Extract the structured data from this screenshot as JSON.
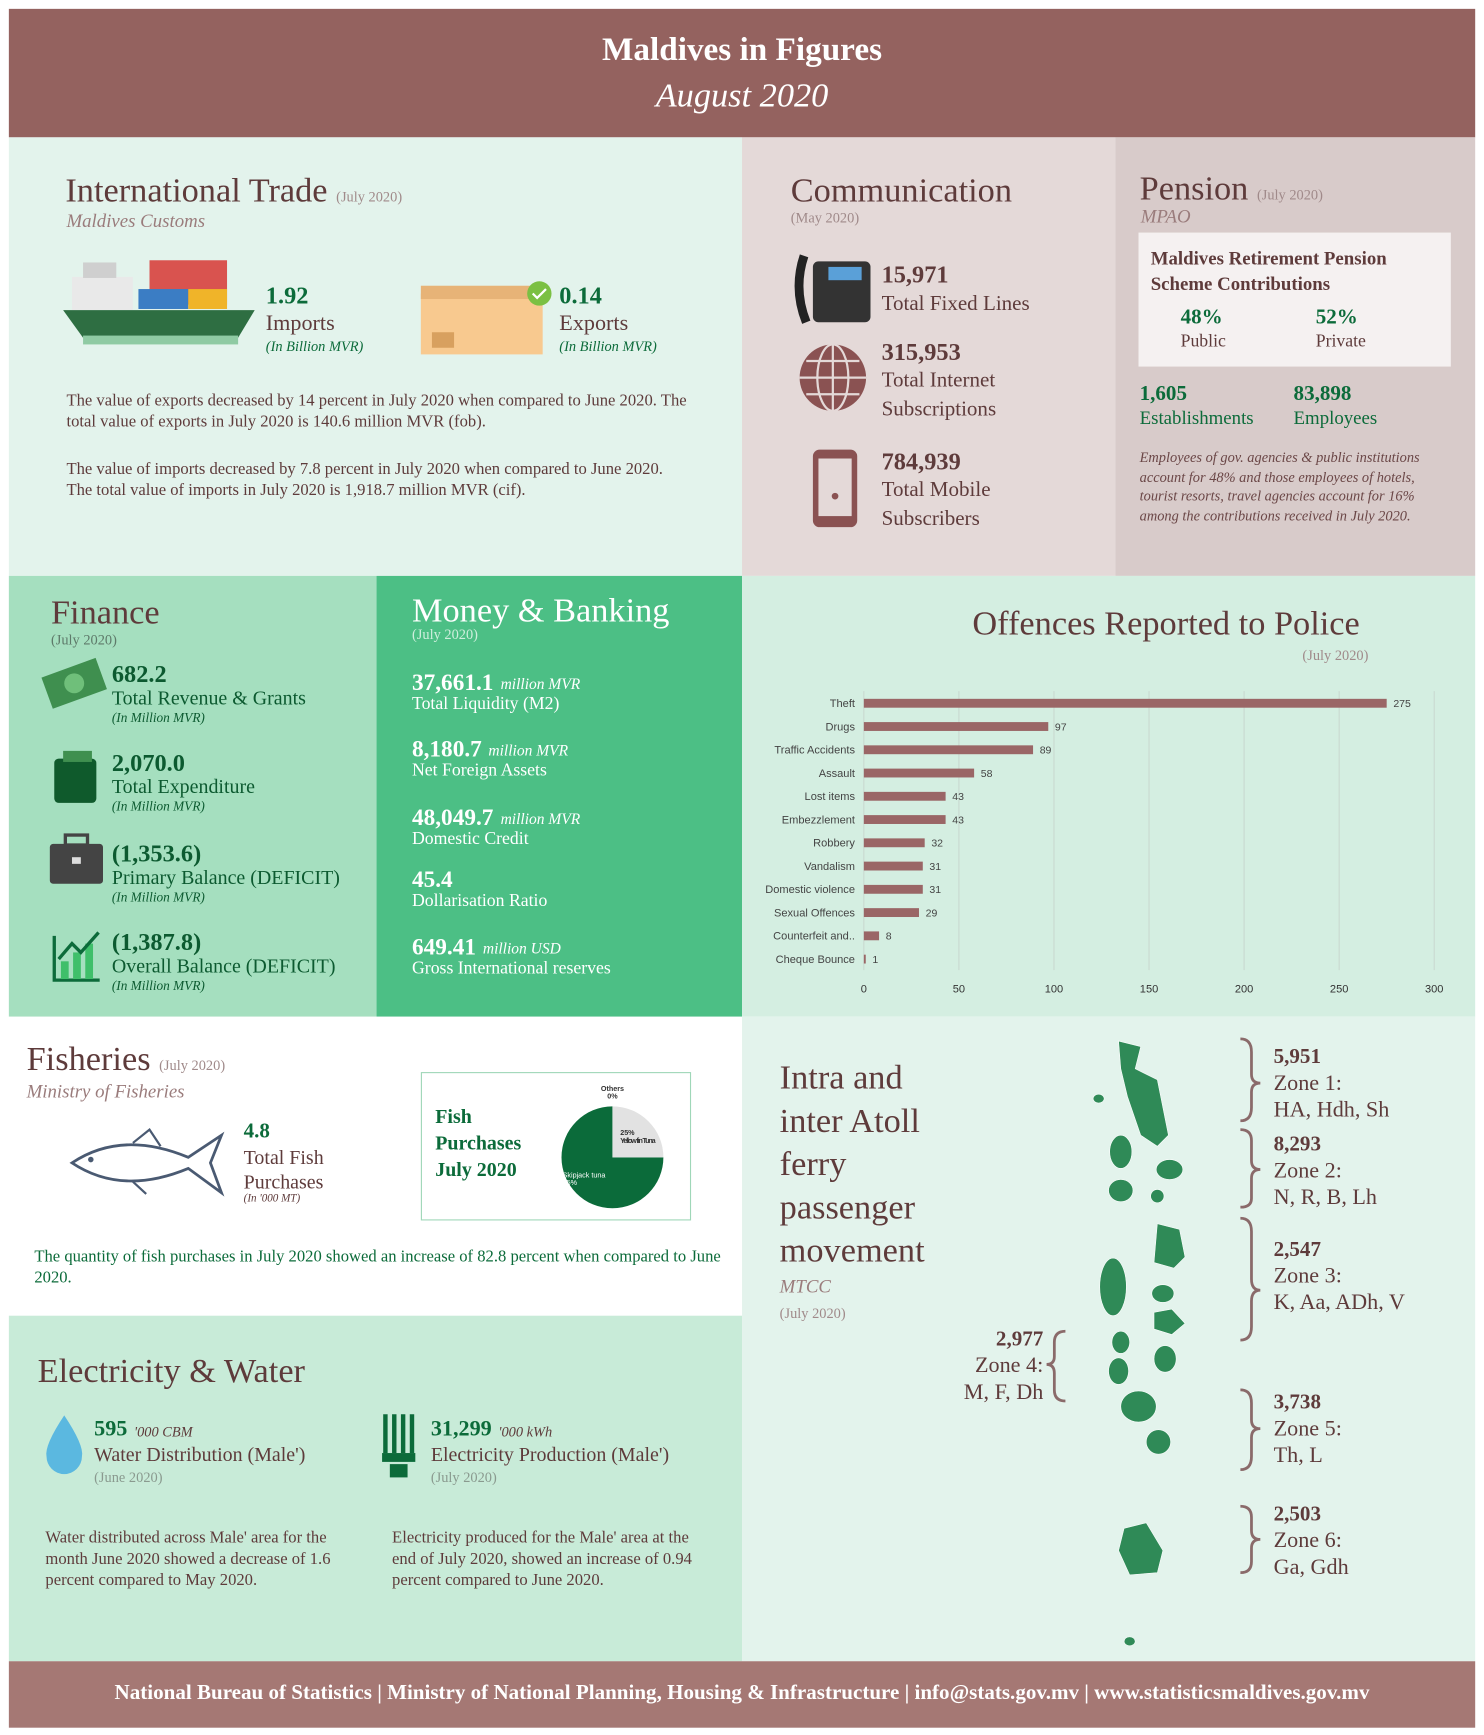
{
  "header": {
    "title": "Maldives in Figures",
    "subtitle": "August 2020"
  },
  "trade": {
    "title": "International Trade",
    "date": "(July 2020)",
    "source": "Maldives Customs",
    "imports": {
      "value": "1.92",
      "label": "Imports",
      "unit": "(In Billion MVR)"
    },
    "exports": {
      "value": "0.14",
      "label": "Exports",
      "unit": "(In Billion MVR)"
    },
    "paragraphs": [
      "The value of exports decreased by 14 percent in July 2020 when compared to June 2020. The total value of exports in July 2020 is 140.6 million MVR (fob).",
      "The value of imports decreased by 7.8 percent in July 2020  when compared to June 2020.  The total value of imports in July 2020 is 1,918.7 million MVR (cif)."
    ]
  },
  "communication": {
    "title": "Communication",
    "date": "(May 2020)",
    "items": [
      {
        "value": "15,971",
        "label": "Total Fixed Lines"
      },
      {
        "value": "315,953",
        "label": "Total Internet Subscriptions"
      },
      {
        "value": "784,939",
        "label": "Total Mobile Subscribers"
      }
    ]
  },
  "pension": {
    "title": "Pension",
    "date": "(July 2020)",
    "source": "MPAO",
    "box_title": "Maldives Retirement  Pension Scheme Contributions",
    "shares": [
      {
        "value": "48%",
        "label": "Public"
      },
      {
        "value": "52%",
        "label": "Private"
      }
    ],
    "counts": [
      {
        "value": "1,605",
        "label": "Establishments"
      },
      {
        "value": "83,898",
        "label": "Employees"
      }
    ],
    "note": "Employees of gov. agencies & public institutions account for 48% and those employees of hotels, tourist resorts, travel agencies account for 16% among the contributions received in July 2020."
  },
  "finance": {
    "title": "Finance",
    "date": "(July 2020)",
    "items": [
      {
        "value": "682.2",
        "label": "Total Revenue & Grants",
        "unit": "(In Million MVR)"
      },
      {
        "value": "2,070.0",
        "label": "Total Expenditure",
        "unit": "(In Million MVR)"
      },
      {
        "value": "(1,353.6)",
        "label": "Primary Balance (DEFICIT)",
        "unit": "(In Million MVR)"
      },
      {
        "value": "(1,387.8)",
        "label": "Overall Balance (DEFICIT)",
        "unit": "(In Million MVR)"
      }
    ]
  },
  "banking": {
    "title": "Money & Banking",
    "date": "(July 2020)",
    "items": [
      {
        "value": "37,661.1",
        "unit": "million MVR",
        "label": "Total Liquidity (M2)"
      },
      {
        "value": "8,180.7",
        "unit": "million MVR",
        "label": "Net Foreign Assets"
      },
      {
        "value": "48,049.7",
        "unit": "million MVR",
        "label": "Domestic Credit"
      },
      {
        "value": "45.4",
        "label": "Dollarisation Ratio"
      },
      {
        "value": "649.41",
        "unit": "million USD",
        "label": "Gross International reserves"
      }
    ]
  },
  "fisheries": {
    "title": "Fisheries",
    "date": "(July 2020)",
    "source": "Ministry of Fisheries",
    "value": "4.8",
    "label": "Total Fish Purchases",
    "unit": "(In '000 MT)",
    "pie_title": "Fish Purchases July 2020",
    "paragraph": "The quantity of fish purchases in July 2020 showed an increase of 82.8 percent when compared to June 2020."
  },
  "electricity": {
    "title": "Electricity & Water",
    "items": [
      {
        "value": "595",
        "unit": "'000 CBM",
        "label": "Water Distribution (Male')",
        "date": "(June 2020)",
        "text": "Water distributed across Male' area for the month June 2020 showed a decrease of 1.6 percent compared to May 2020."
      },
      {
        "value": "31,299",
        "unit": "'000 kWh",
        "label": "Electricity Production (Male')",
        "date": "(July 2020)",
        "text": "Electricity produced for the Male' area at the end of July 2020, showed an increase of 0.94 percent compared to June 2020."
      }
    ]
  },
  "ferry": {
    "title": "Intra and inter Atoll ferry passenger movement",
    "source": "MTCC",
    "date": "(July 2020)",
    "zones": [
      {
        "value": "5,951",
        "name": "Zone 1:",
        "atolls": "HA, Hdh, Sh"
      },
      {
        "value": "8,293",
        "name": "Zone 2:",
        "atolls": "N, R, B, Lh"
      },
      {
        "value": "2,547",
        "name": "Zone 3:",
        "atolls": "K, Aa, ADh, V"
      },
      {
        "value": "2,977",
        "name": "Zone 4:",
        "atolls": "M, F, Dh"
      },
      {
        "value": "3,738",
        "name": "Zone 5:",
        "atolls": "Th, L"
      },
      {
        "value": "2,503",
        "name": "Zone 6:",
        "atolls": "Ga, Gdh"
      }
    ]
  },
  "footer": "National Bureau of Statistics | Ministry of National Planning, Housing & Infrastructure | info@stats.gov.mv | www.statisticsmaldives.gov.mv",
  "chart_data": [
    {
      "type": "bar",
      "orientation": "horizontal",
      "title": "Offences Reported to Police",
      "subtitle": "(July 2020)",
      "categories": [
        "Theft",
        "Drugs",
        "Traffic Accidents",
        "Assault",
        "Lost items",
        "Embezzlement",
        "Robbery",
        "Vandalism",
        "Domestic violence",
        "Sexual Offences",
        "Counterfeit and..",
        "Cheque Bounce"
      ],
      "values": [
        275,
        97,
        89,
        58,
        43,
        43,
        32,
        31,
        31,
        29,
        8,
        1
      ],
      "color": "#9a6666",
      "xlim": [
        0,
        300
      ],
      "xticks": [
        0,
        50,
        100,
        150,
        200,
        250,
        300
      ],
      "grid": true
    },
    {
      "type": "pie",
      "categories": [
        "Skipjack tuna",
        "Yellow fin Tuna",
        "Others"
      ],
      "values": [
        75,
        25,
        0
      ],
      "value_labels": [
        "75%",
        "25%",
        "0%"
      ],
      "colors": [
        "#0b6b3a",
        "#e2e2e2",
        "#bdbdbd"
      ]
    }
  ]
}
